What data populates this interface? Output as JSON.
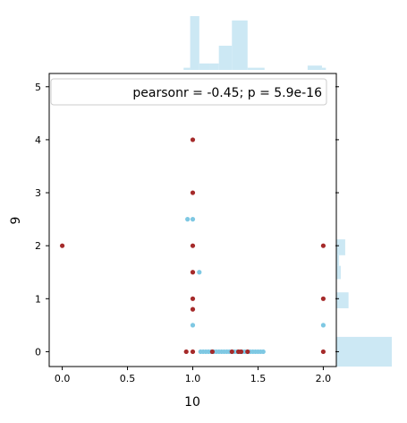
{
  "chart_data": {
    "type": "scatter",
    "title": "",
    "xlabel": "10",
    "ylabel": "9",
    "xlim": [
      -0.1,
      2.1
    ],
    "ylim": [
      -0.28,
      5.25
    ],
    "xticks": [
      0.0,
      0.5,
      1.0,
      1.5,
      2.0
    ],
    "xtick_labels": [
      "0.0",
      "0.5",
      "1.0",
      "1.5",
      "2.0"
    ],
    "yticks": [
      0,
      1,
      2,
      3,
      4,
      5
    ],
    "ytick_labels": [
      "0",
      "1",
      "2",
      "3",
      "4",
      "5"
    ],
    "annotation": "pearsonr = -0.45; p = 5.9e-16",
    "grid": false,
    "colors": {
      "series_a": "#7ec8e3",
      "series_b": "#a52a2a",
      "marginal": "#cce8f4"
    },
    "series": [
      {
        "color": "#7ec8e3",
        "points": [
          [
            0.96,
            2.5
          ],
          [
            1.0,
            2.5
          ],
          [
            1.05,
            1.5
          ],
          [
            1.0,
            0.5
          ],
          [
            2.0,
            0.5
          ],
          [
            1.06,
            0
          ],
          [
            1.08,
            0
          ],
          [
            1.1,
            0
          ],
          [
            1.12,
            0
          ],
          [
            1.14,
            0
          ],
          [
            1.16,
            0
          ],
          [
            1.18,
            0
          ],
          [
            1.2,
            0
          ],
          [
            1.22,
            0
          ],
          [
            1.24,
            0
          ],
          [
            1.26,
            0
          ],
          [
            1.28,
            0
          ],
          [
            1.3,
            0
          ],
          [
            1.32,
            0
          ],
          [
            1.34,
            0
          ],
          [
            1.36,
            0
          ],
          [
            1.38,
            0
          ],
          [
            1.4,
            0
          ],
          [
            1.42,
            0
          ],
          [
            1.44,
            0
          ],
          [
            1.46,
            0
          ],
          [
            1.48,
            0
          ],
          [
            1.5,
            0
          ],
          [
            1.52,
            0
          ],
          [
            1.54,
            0
          ]
        ]
      },
      {
        "color": "#a52a2a",
        "points": [
          [
            0.0,
            2.0
          ],
          [
            1.0,
            4.0
          ],
          [
            1.0,
            3.0
          ],
          [
            1.0,
            2.0
          ],
          [
            1.0,
            1.5
          ],
          [
            1.0,
            1.0
          ],
          [
            1.0,
            0.8
          ],
          [
            0.95,
            0
          ],
          [
            1.0,
            0
          ],
          [
            1.15,
            0
          ],
          [
            1.3,
            0
          ],
          [
            1.35,
            0
          ],
          [
            1.37,
            0
          ],
          [
            1.42,
            0
          ],
          [
            2.0,
            2.0
          ],
          [
            2.0,
            1.0
          ],
          [
            2.0,
            0
          ]
        ]
      }
    ],
    "marginal_x": {
      "bins": [
        [
          0.93,
          0.98,
          0.04
        ],
        [
          0.98,
          1.05,
          1.0
        ],
        [
          1.05,
          1.13,
          0.12
        ],
        [
          1.13,
          1.2,
          0.12
        ],
        [
          1.2,
          1.3,
          0.45
        ],
        [
          1.3,
          1.42,
          0.92
        ],
        [
          1.42,
          1.55,
          0.04
        ],
        [
          1.88,
          1.99,
          0.08
        ],
        [
          1.99,
          2.02,
          0.04
        ]
      ]
    },
    "marginal_y": {
      "bins": [
        [
          -0.28,
          0.28,
          1.0
        ],
        [
          0.82,
          1.12,
          0.22
        ],
        [
          1.37,
          1.62,
          0.08
        ],
        [
          1.62,
          1.82,
          0.05
        ],
        [
          1.82,
          2.12,
          0.16
        ]
      ]
    }
  }
}
